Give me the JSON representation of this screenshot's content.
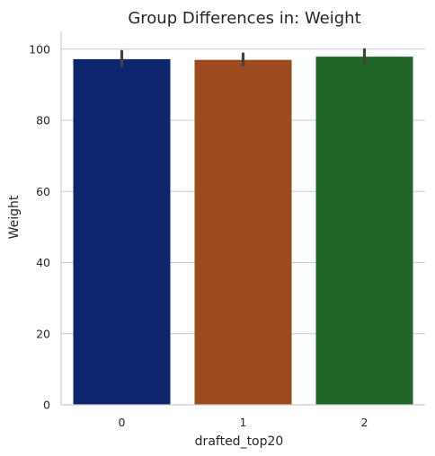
{
  "chart_data": {
    "type": "bar",
    "title": "Group Differences in: Weight",
    "xlabel": "drafted_top20",
    "ylabel": "Weight",
    "categories": [
      "0",
      "1",
      "2"
    ],
    "values": [
      97.2,
      97.0,
      97.9
    ],
    "error_bars": [
      {
        "low": 95.3,
        "high": 99.4
      },
      {
        "low": 95.6,
        "high": 98.7
      },
      {
        "low": 96.0,
        "high": 99.9
      }
    ],
    "ylim": [
      0,
      105
    ],
    "yticks": [
      "0",
      "20",
      "40",
      "60",
      "80",
      "100"
    ],
    "grid": "horizontal",
    "legend": "none",
    "colors": [
      "#0e246c",
      "#9e4a20",
      "#1f6525"
    ],
    "errorbar_color": "#424242"
  }
}
